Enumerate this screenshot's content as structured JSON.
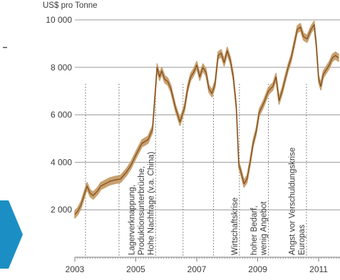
{
  "chart_data": {
    "type": "area",
    "ylabel": "US$ pro Tonne",
    "ylim": [
      0,
      10000
    ],
    "xlim": [
      2003.0,
      2011.7
    ],
    "y_ticks": [
      {
        "value": 10000,
        "label": "10 000"
      },
      {
        "value": 8000,
        "label": "8 000"
      },
      {
        "value": 6000,
        "label": "6 000"
      },
      {
        "value": 4000,
        "label": "4 000"
      },
      {
        "value": 2000,
        "label": "2 000"
      }
    ],
    "x_ticks": [
      {
        "value": 2003,
        "label": "2003"
      },
      {
        "value": 2005,
        "label": "2005"
      },
      {
        "value": 2007,
        "label": "2007"
      },
      {
        "value": 2009,
        "label": "2009"
      },
      {
        "value": 2011,
        "label": "2011"
      }
    ],
    "grid": true,
    "colors": {
      "line": "#7a4a1c",
      "band": "#c9a06e",
      "grid": "#9a9a9a",
      "axis": "#777777",
      "guide": "#666666"
    },
    "series": [
      {
        "x": [
          2003.0,
          2003.1,
          2003.2,
          2003.3,
          2003.4,
          2003.5,
          2003.6,
          2003.75,
          2003.85,
          2004.0,
          2004.15,
          2004.3,
          2004.5,
          2004.7,
          2004.85,
          2005.0,
          2005.2,
          2005.4,
          2005.55,
          2005.7,
          2005.78,
          2005.85,
          2005.95,
          2006.05,
          2006.15,
          2006.3,
          2006.45,
          2006.6,
          2006.7,
          2006.8,
          2006.9,
          2007.0,
          2007.1,
          2007.2,
          2007.3,
          2007.4,
          2007.5,
          2007.6,
          2007.7,
          2007.8,
          2007.9,
          2008.0,
          2008.1,
          2008.2,
          2008.3,
          2008.38,
          2008.45,
          2008.55,
          2008.65,
          2008.75,
          2008.85,
          2008.95,
          2009.05,
          2009.2,
          2009.35,
          2009.5,
          2009.6,
          2009.7,
          2009.8,
          2009.9,
          2010.0,
          2010.1,
          2010.2,
          2010.3,
          2010.4,
          2010.5,
          2010.62,
          2010.75,
          2010.85,
          2010.92,
          2011.0,
          2011.07,
          2011.15,
          2011.25,
          2011.35,
          2011.45,
          2011.55,
          2011.65
        ],
        "y": [
          1800,
          1950,
          2200,
          2600,
          3000,
          2700,
          2600,
          2800,
          3000,
          3100,
          3200,
          3250,
          3300,
          3600,
          3900,
          4300,
          4800,
          4950,
          5400,
          8000,
          7600,
          7850,
          7500,
          7400,
          7100,
          6300,
          5700,
          6300,
          7100,
          7600,
          7800,
          8100,
          7600,
          8000,
          7800,
          7100,
          6900,
          7300,
          8500,
          8600,
          8200,
          8700,
          8300,
          7600,
          6300,
          3900,
          3600,
          3100,
          3300,
          4000,
          4800,
          5300,
          6100,
          6500,
          7000,
          7200,
          7600,
          6600,
          7000,
          7500,
          8000,
          8400,
          9000,
          9600,
          9700,
          9300,
          9200,
          9600,
          9800,
          9000,
          7500,
          7200,
          7700,
          7900,
          8100,
          8400,
          8500,
          8400
        ],
        "band": 150
      }
    ],
    "events": [
      {
        "x": 2003.35,
        "lines": []
      },
      {
        "x": 2004.45,
        "lines": []
      },
      {
        "x": 2005.65,
        "lines": [
          "Lagerverknappung,",
          "Produktionsunterbrüche,",
          "Hohe Nachfrage (v.a. China)"
        ]
      },
      {
        "x": 2006.55,
        "lines": []
      },
      {
        "x": 2007.55,
        "lines": []
      },
      {
        "x": 2008.4,
        "lines": [
          "Wirtschaftskrise"
        ]
      },
      {
        "x": 2009.35,
        "lines": [
          "hoher Bedarf,",
          "wenig Angebot"
        ]
      },
      {
        "x": 2010.6,
        "lines": [
          "Angst vor Verschuldungskrise",
          "Europas"
        ]
      }
    ]
  }
}
